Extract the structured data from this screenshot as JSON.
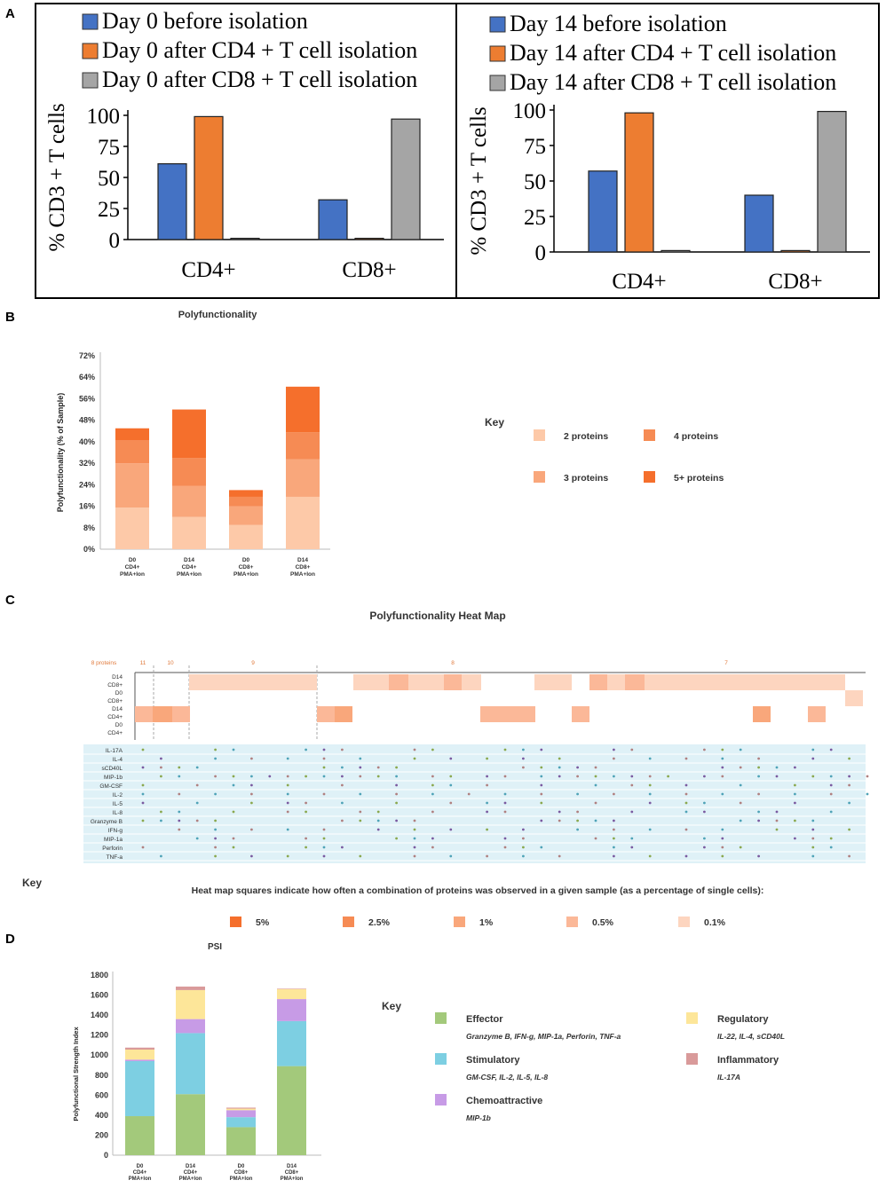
{
  "panel_letters": {
    "a": "A",
    "b": "B",
    "c": "C",
    "d": "D"
  },
  "colors": {
    "blue": "#4472c4",
    "orange": "#ed7d31",
    "gray": "#a5a5a5",
    "p2": "#fdc9a8",
    "p3": "#f9a77b",
    "p4": "#f68b54",
    "p5": "#f56f2c",
    "effector": "#a3c97b",
    "stimulatory": "#7dcfe2",
    "chemo": "#c79be6",
    "regulatory": "#fde699",
    "inflammatory": "#d99a9a",
    "heat_5": "#f56f2c",
    "heat_2_5": "#f68b54",
    "heat_1": "#f9a77b",
    "heat_0_5": "#fbb898",
    "heat_0_1": "#fdd5bf",
    "grid_bg": "#dff1f7"
  },
  "chart_data": [
    {
      "id": "A-left",
      "type": "bar",
      "title": "",
      "ylabel": "% CD3 + T cells",
      "ylim": [
        0,
        100
      ],
      "yticks": [
        "0",
        "25",
        "50",
        "75",
        "100"
      ],
      "categories": [
        "CD4+",
        "CD8+"
      ],
      "series": [
        {
          "name": "Day 0 before isolation",
          "values": [
            61,
            32
          ]
        },
        {
          "name": "Day 0 after CD4 + T cell isolation",
          "values": [
            99,
            1
          ]
        },
        {
          "name": "Day 0 after CD8 + T cell isolation",
          "values": [
            1,
            97
          ]
        }
      ]
    },
    {
      "id": "A-right",
      "type": "bar",
      "title": "",
      "ylabel": "% CD3 + T cells",
      "ylim": [
        0,
        100
      ],
      "yticks": [
        "0",
        "25",
        "50",
        "75",
        "100"
      ],
      "categories": [
        "CD4+",
        "CD8+"
      ],
      "series": [
        {
          "name": "Day 14 before isolation",
          "values": [
            57,
            40
          ]
        },
        {
          "name": "Day 14 after CD4 + T cell isolation",
          "values": [
            98,
            1
          ]
        },
        {
          "name": "Day 14 after CD8 + T cell isolation",
          "values": [
            1,
            99
          ]
        }
      ]
    },
    {
      "id": "B",
      "type": "bar",
      "stacked": true,
      "title": "Polyfunctionality",
      "ylabel": "Polyfunctionality (% of Sample)",
      "ylim": [
        0,
        0.72
      ],
      "yticks": [
        "0%",
        "8%",
        "16%",
        "24%",
        "32%",
        "40%",
        "48%",
        "56%",
        "64%",
        "72%"
      ],
      "categories": [
        [
          "D0",
          "CD4+",
          "PMA+Ion"
        ],
        [
          "D14",
          "CD4+",
          "PMA+Ion"
        ],
        [
          "D0",
          "CD8+",
          "PMA+Ion"
        ],
        [
          "D14",
          "CD8+",
          "PMA+Ion"
        ]
      ],
      "series": [
        {
          "name": "2 proteins",
          "values": [
            0.155,
            0.12,
            0.09,
            0.195
          ]
        },
        {
          "name": "3 proteins",
          "values": [
            0.165,
            0.115,
            0.07,
            0.14
          ]
        },
        {
          "name": "4 proteins",
          "values": [
            0.085,
            0.105,
            0.035,
            0.1
          ]
        },
        {
          "name": "5+ proteins",
          "values": [
            0.045,
            0.18,
            0.025,
            0.17
          ]
        }
      ],
      "key_title": "Key"
    },
    {
      "id": "C",
      "type": "heatmap",
      "title": "Polyfunctionality Heat Map",
      "group_labels": [
        "8 proteins",
        "11",
        "10",
        "9",
        "8",
        "7"
      ],
      "sample_labels": [
        [
          "D14",
          "CD8+"
        ],
        [
          "D0",
          "CD8+"
        ],
        [
          "D14",
          "CD4+"
        ],
        [
          "D0",
          "CD4+"
        ]
      ],
      "proteins": [
        "IL-17A",
        "IL-4",
        "sCD40L",
        "MIP-1b",
        "GM-CSF",
        "IL-2",
        "IL-5",
        "IL-8",
        "Granzyme B",
        "IFN-g",
        "MIP-1a",
        "Perforin",
        "TNF-a"
      ],
      "key_title": "Key",
      "key_description": "Heat map squares indicate how often a combination of proteins was observed in a given sample (as a percentage of single cells):",
      "levels": [
        "5%",
        "2.5%",
        "1%",
        "0.5%",
        "0.1%"
      ]
    },
    {
      "id": "D",
      "type": "bar",
      "stacked": true,
      "title": "PSI",
      "ylabel": "Polyfunctional Strength Index",
      "ylim": [
        0,
        1800
      ],
      "yticks": [
        "0",
        "200",
        "400",
        "600",
        "800",
        "1000",
        "1200",
        "1400",
        "1600",
        "1800"
      ],
      "categories": [
        [
          "D0",
          "CD4+",
          "PMA+Ion"
        ],
        [
          "D14",
          "CD4+",
          "PMA+Ion"
        ],
        [
          "D0",
          "CD8+",
          "PMA+Ion"
        ],
        [
          "D14",
          "CD8+",
          "PMA+Ion"
        ]
      ],
      "series": [
        {
          "name": "Effector",
          "values": [
            390,
            610,
            280,
            890
          ]
        },
        {
          "name": "Stimulatory",
          "values": [
            550,
            610,
            100,
            450
          ]
        },
        {
          "name": "Chemoattractive",
          "values": [
            15,
            140,
            70,
            220
          ]
        },
        {
          "name": "Regulatory",
          "values": [
            100,
            290,
            15,
            100
          ]
        },
        {
          "name": "Inflammatory",
          "values": [
            20,
            35,
            10,
            5
          ]
        }
      ],
      "key_title": "Key",
      "key_items": [
        {
          "name": "Effector",
          "desc": "Granzyme B, IFN-g, MIP-1a, Perforin, TNF-a"
        },
        {
          "name": "Regulatory",
          "desc": "IL-22, IL-4, sCD40L"
        },
        {
          "name": "Stimulatory",
          "desc": "GM-CSF, IL-2, IL-5, IL-8"
        },
        {
          "name": "Inflammatory",
          "desc": "IL-17A"
        },
        {
          "name": "Chemoattractive",
          "desc": "MIP-1b"
        }
      ]
    }
  ]
}
